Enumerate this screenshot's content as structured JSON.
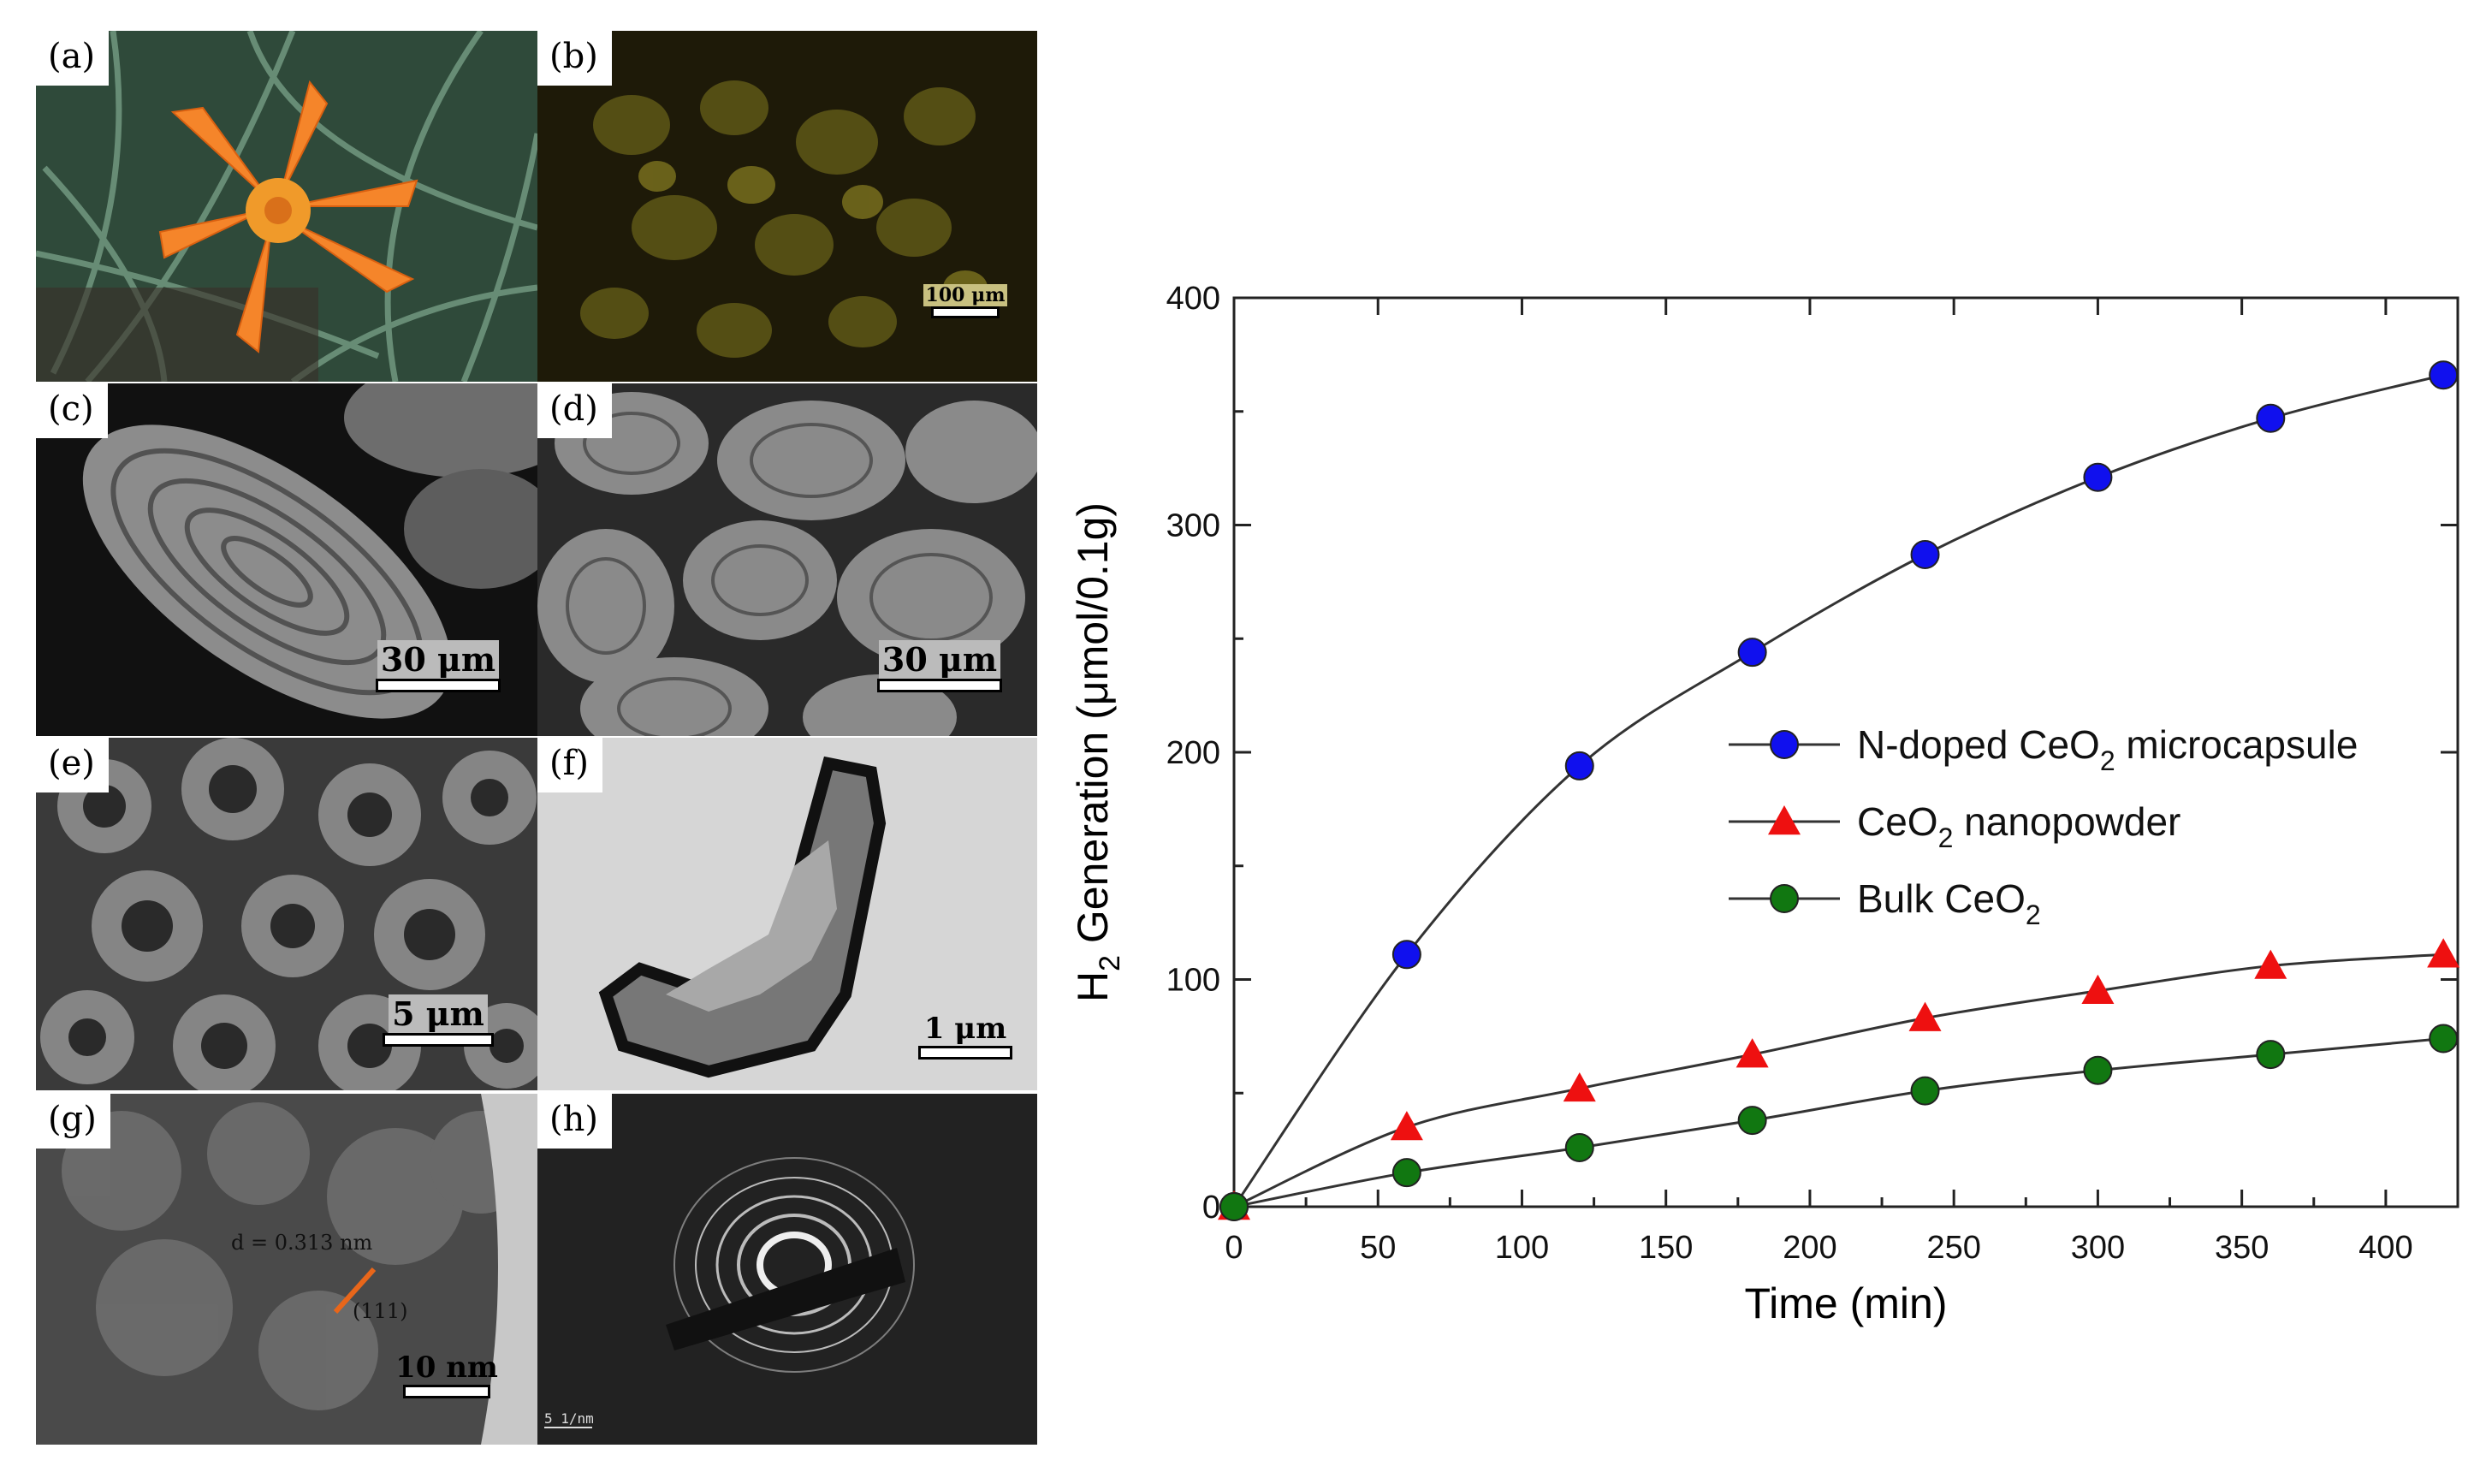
{
  "panels": [
    {
      "label": "(a)"
    },
    {
      "label": "(b)",
      "scale": "100 μm"
    },
    {
      "label": "(c)",
      "scale": "30 μm"
    },
    {
      "label": "(d)",
      "scale": "30 μm"
    },
    {
      "label": "(e)",
      "scale": "5 μm"
    },
    {
      "label": "(f)",
      "scale": "1 μm"
    },
    {
      "label": "(g)",
      "scale": "10 nm",
      "annotation_d": "d = 0.313 nm",
      "annotation_plane": "(111)"
    },
    {
      "label": "(h)",
      "scale": "5 1/nm"
    }
  ],
  "colors": {
    "series1": "#1010ee",
    "series2": "#ee1010",
    "series3": "#117711",
    "line": "#333333"
  },
  "chart_data": {
    "type": "line",
    "xlabel": "Time (min)",
    "ylabel_prefix": "H",
    "ylabel_sub": "2",
    "ylabel_rest": " Generation (μmol/0.1g)",
    "xlim": [
      0,
      425
    ],
    "ylim": [
      0,
      400
    ],
    "xticks": [
      0,
      50,
      100,
      150,
      200,
      250,
      300,
      350,
      400
    ],
    "yticks": [
      0,
      100,
      200,
      300,
      400
    ],
    "x": [
      0,
      60,
      120,
      180,
      240,
      300,
      360,
      420
    ],
    "series": [
      {
        "name_pre": "N-doped CeO",
        "name_sub": "2",
        "name_post": " microcapsule",
        "marker": "circle",
        "color": "#1010ee",
        "values": [
          0,
          111,
          194,
          244,
          287,
          321,
          347,
          366
        ]
      },
      {
        "name_pre": "CeO",
        "name_sub": "2",
        "name_post": " nanopowder",
        "marker": "triangle",
        "color": "#ee1010",
        "values": [
          0,
          35,
          52,
          67,
          83,
          95,
          106,
          111
        ]
      },
      {
        "name_pre": "Bulk CeO",
        "name_sub": "2",
        "name_post": "",
        "marker": "circle",
        "color": "#117711",
        "values": [
          0,
          15,
          26,
          38,
          51,
          60,
          67,
          74
        ]
      }
    ],
    "legend_position": "center-right"
  }
}
